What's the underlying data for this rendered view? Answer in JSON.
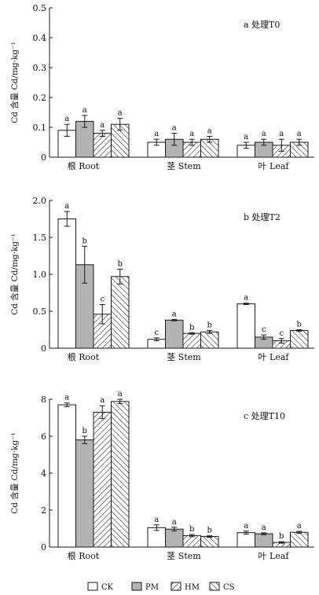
{
  "legend": {
    "items": [
      {
        "key": "CK",
        "label": "CK",
        "pattern": "white"
      },
      {
        "key": "PM",
        "label": "PM",
        "pattern": "gray"
      },
      {
        "key": "HM",
        "label": "HM",
        "pattern": "hatch-forward"
      },
      {
        "key": "CS",
        "label": "CS",
        "pattern": "hatch-backward"
      }
    ]
  },
  "colors": {
    "gray_fill": "#b3b3b3",
    "stroke": "#1a1a1a",
    "background": "#ffffff"
  },
  "chart_data": [
    {
      "type": "bar",
      "title": "a 处理T0",
      "ylabel": "Cd 含量 Cd/mg·kg⁻¹",
      "xlabel": "",
      "categories": [
        "根 Root",
        "茎 Stem",
        "叶 Leaf"
      ],
      "ylim": [
        0,
        0.5
      ],
      "yticks": [
        0,
        0.1,
        0.2,
        0.3,
        0.4,
        0.5
      ],
      "ytick_labels": [
        "0",
        "0.1",
        "0.2",
        "0.3",
        "0.4",
        "0.5"
      ],
      "grid": false,
      "legend_position": "bottom",
      "series": [
        {
          "name": "CK",
          "values": [
            0.09,
            0.05,
            0.04
          ],
          "errors": [
            0.02,
            0.01,
            0.01
          ],
          "letters": [
            "a",
            "a",
            "a"
          ]
        },
        {
          "name": "PM",
          "values": [
            0.12,
            0.06,
            0.05
          ],
          "errors": [
            0.02,
            0.02,
            0.01
          ],
          "letters": [
            "a",
            "a",
            "a"
          ]
        },
        {
          "name": "HM",
          "values": [
            0.08,
            0.05,
            0.04
          ],
          "errors": [
            0.01,
            0.01,
            0.02
          ],
          "letters": [
            "a",
            "a",
            "a"
          ]
        },
        {
          "name": "CS",
          "values": [
            0.11,
            0.06,
            0.05
          ],
          "errors": [
            0.02,
            0.01,
            0.01
          ],
          "letters": [
            "a",
            "a",
            "a"
          ]
        }
      ]
    },
    {
      "type": "bar",
      "title": "b 处理T2",
      "ylabel": "Cd 含量 Cd/mg·kg⁻¹",
      "xlabel": "",
      "categories": [
        "根 Root",
        "茎 Stem",
        "叶 Leaf"
      ],
      "ylim": [
        0,
        2.0
      ],
      "yticks": [
        0,
        0.5,
        1.0,
        1.5,
        2.0
      ],
      "ytick_labels": [
        "0",
        "0.5",
        "1.0",
        "1.5",
        "2.0"
      ],
      "grid": false,
      "legend_position": "bottom",
      "series": [
        {
          "name": "CK",
          "values": [
            1.75,
            0.12,
            0.6
          ],
          "errors": [
            0.1,
            0.02,
            0.01
          ],
          "letters": [
            "a",
            "c",
            "a"
          ]
        },
        {
          "name": "PM",
          "values": [
            1.13,
            0.38,
            0.15
          ],
          "errors": [
            0.25,
            0.01,
            0.03
          ],
          "letters": [
            "b",
            "a",
            "c"
          ]
        },
        {
          "name": "HM",
          "values": [
            0.46,
            0.2,
            0.1
          ],
          "errors": [
            0.13,
            0.01,
            0.03
          ],
          "letters": [
            "c",
            "b",
            "c"
          ]
        },
        {
          "name": "CS",
          "values": [
            0.97,
            0.22,
            0.24
          ],
          "errors": [
            0.1,
            0.02,
            0.01
          ],
          "letters": [
            "b",
            "b",
            "b"
          ]
        }
      ]
    },
    {
      "type": "bar",
      "title": "c 处理T10",
      "ylabel": "Cd 含量 Cd/mg·kg⁻¹",
      "xlabel": "",
      "categories": [
        "根 Root",
        "茎 Stem",
        "叶 Leaf"
      ],
      "ylim": [
        0,
        8
      ],
      "yticks": [
        0,
        2,
        4,
        6,
        8
      ],
      "ytick_labels": [
        "0",
        "2",
        "4",
        "6",
        "8"
      ],
      "grid": false,
      "legend_position": "bottom",
      "series": [
        {
          "name": "CK",
          "values": [
            7.7,
            1.05,
            0.78
          ],
          "errors": [
            0.1,
            0.15,
            0.08
          ],
          "letters": [
            "a",
            "a",
            "a"
          ]
        },
        {
          "name": "PM",
          "values": [
            5.8,
            0.97,
            0.72
          ],
          "errors": [
            0.2,
            0.1,
            0.05
          ],
          "letters": [
            "b",
            "a",
            "a"
          ]
        },
        {
          "name": "HM",
          "values": [
            7.3,
            0.62,
            0.25
          ],
          "errors": [
            0.35,
            0.06,
            0.04
          ],
          "letters": [
            "a",
            "b",
            "b"
          ]
        },
        {
          "name": "CS",
          "values": [
            7.88,
            0.57,
            0.8
          ],
          "errors": [
            0.12,
            0.04,
            0.05
          ],
          "letters": [
            "a",
            "b",
            "a"
          ]
        }
      ]
    }
  ]
}
